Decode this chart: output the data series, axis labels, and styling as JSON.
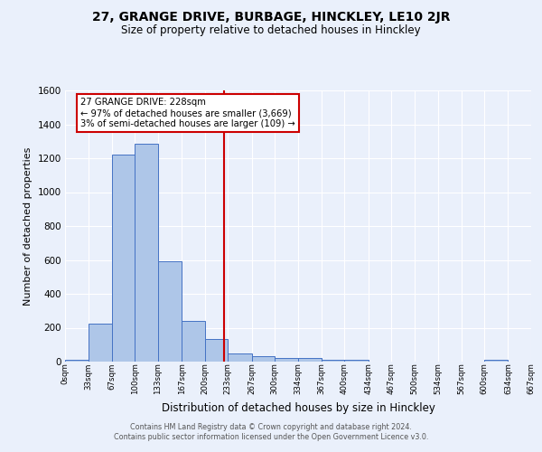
{
  "title": "27, GRANGE DRIVE, BURBAGE, HINCKLEY, LE10 2JR",
  "subtitle": "Size of property relative to detached houses in Hinckley",
  "xlabel": "Distribution of detached houses by size in Hinckley",
  "ylabel": "Number of detached properties",
  "footer_line1": "Contains HM Land Registry data © Crown copyright and database right 2024.",
  "footer_line2": "Contains public sector information licensed under the Open Government Licence v3.0.",
  "annotation_line1": "27 GRANGE DRIVE: 228sqm",
  "annotation_line2": "← 97% of detached houses are smaller (3,669)",
  "annotation_line3": "3% of semi-detached houses are larger (109) →",
  "bar_edges": [
    0,
    33,
    67,
    100,
    133,
    167,
    200,
    233,
    267,
    300,
    334,
    367,
    400,
    434,
    467,
    500,
    534,
    567,
    600,
    634,
    667
  ],
  "bar_heights": [
    10,
    222,
    1222,
    1285,
    592,
    238,
    135,
    50,
    30,
    22,
    20,
    10,
    10,
    0,
    0,
    0,
    0,
    0,
    10,
    0
  ],
  "property_size": 228,
  "bar_fill_color": "#aec6e8",
  "bar_edge_color": "#4472c4",
  "vline_color": "#cc0000",
  "bg_color": "#eaf0fb",
  "grid_color": "#ffffff",
  "annotation_box_color": "#ffffff",
  "annotation_box_edge": "#cc0000",
  "ylim": [
    0,
    1600
  ],
  "xlim": [
    0,
    667
  ],
  "yticks": [
    0,
    200,
    400,
    600,
    800,
    1000,
    1200,
    1400,
    1600
  ]
}
